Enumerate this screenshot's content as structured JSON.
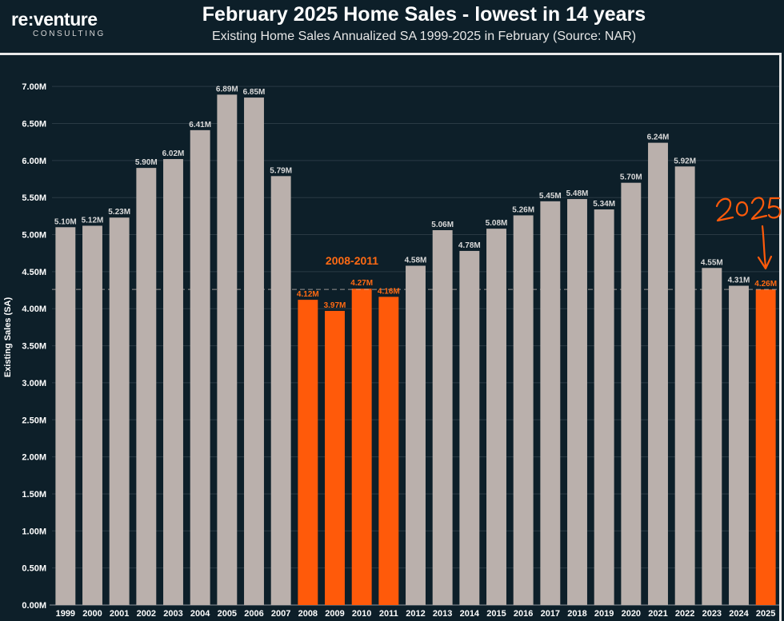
{
  "brand": {
    "name": "re:venture",
    "tagline": "CONSULTING"
  },
  "title": "February 2025 Home Sales - lowest in 14 years",
  "subtitle": "Existing Home Sales Annualized SA 1999-2025 in February (Source: NAR)",
  "colors": {
    "background": "#0d1f29",
    "bar_default": "#bab0ac",
    "bar_highlight": "#ff5a0a",
    "label_highlight": "#ff6a13",
    "reference_line": "#bab0ac"
  },
  "chart_data": {
    "type": "bar",
    "title": "February 2025 Home Sales - lowest in 14 years",
    "subtitle": "Existing Home Sales Annualized SA 1999-2025 in February (Source: NAR)",
    "xlabel": "",
    "ylabel": "Existing Sales (SA)",
    "ylim": [
      0,
      7.25
    ],
    "yticks": [
      0,
      0.5,
      1.0,
      1.5,
      2.0,
      2.5,
      3.0,
      3.5,
      4.0,
      4.5,
      5.0,
      5.5,
      6.0,
      6.5,
      7.0
    ],
    "ytick_labels": [
      "0.00M",
      "0.50M",
      "1.00M",
      "1.50M",
      "2.00M",
      "2.50M",
      "3.00M",
      "3.50M",
      "4.00M",
      "4.50M",
      "5.00M",
      "5.50M",
      "6.00M",
      "6.50M",
      "7.00M"
    ],
    "grid": true,
    "categories": [
      "1999",
      "2000",
      "2001",
      "2002",
      "2003",
      "2004",
      "2005",
      "2006",
      "2007",
      "2008",
      "2009",
      "2010",
      "2011",
      "2012",
      "2013",
      "2014",
      "2015",
      "2016",
      "2017",
      "2018",
      "2019",
      "2020",
      "2021",
      "2022",
      "2023",
      "2024",
      "2025"
    ],
    "values": [
      5.1,
      5.12,
      5.23,
      5.9,
      6.02,
      6.41,
      6.89,
      6.85,
      5.79,
      4.12,
      3.97,
      4.27,
      4.16,
      4.58,
      5.06,
      4.78,
      5.08,
      5.26,
      5.45,
      5.48,
      5.34,
      5.7,
      6.24,
      5.92,
      4.55,
      4.31,
      4.26
    ],
    "value_labels": [
      "5.10M",
      "5.12M",
      "5.23M",
      "5.90M",
      "6.02M",
      "6.41M",
      "6.89M",
      "6.85M",
      "5.79M",
      "4.12M",
      "3.97M",
      "4.27M",
      "4.16M",
      "4.58M",
      "5.06M",
      "4.78M",
      "5.08M",
      "5.26M",
      "5.45M",
      "5.48M",
      "5.34M",
      "5.70M",
      "6.24M",
      "5.92M",
      "4.55M",
      "4.31M",
      "4.26M"
    ],
    "highlighted": [
      "2008",
      "2009",
      "2010",
      "2011",
      "2025"
    ],
    "reference_line": 4.26,
    "annotations": [
      {
        "text": "2008-2011"
      },
      {
        "text": "2025",
        "style": "handwritten arrow"
      }
    ]
  }
}
